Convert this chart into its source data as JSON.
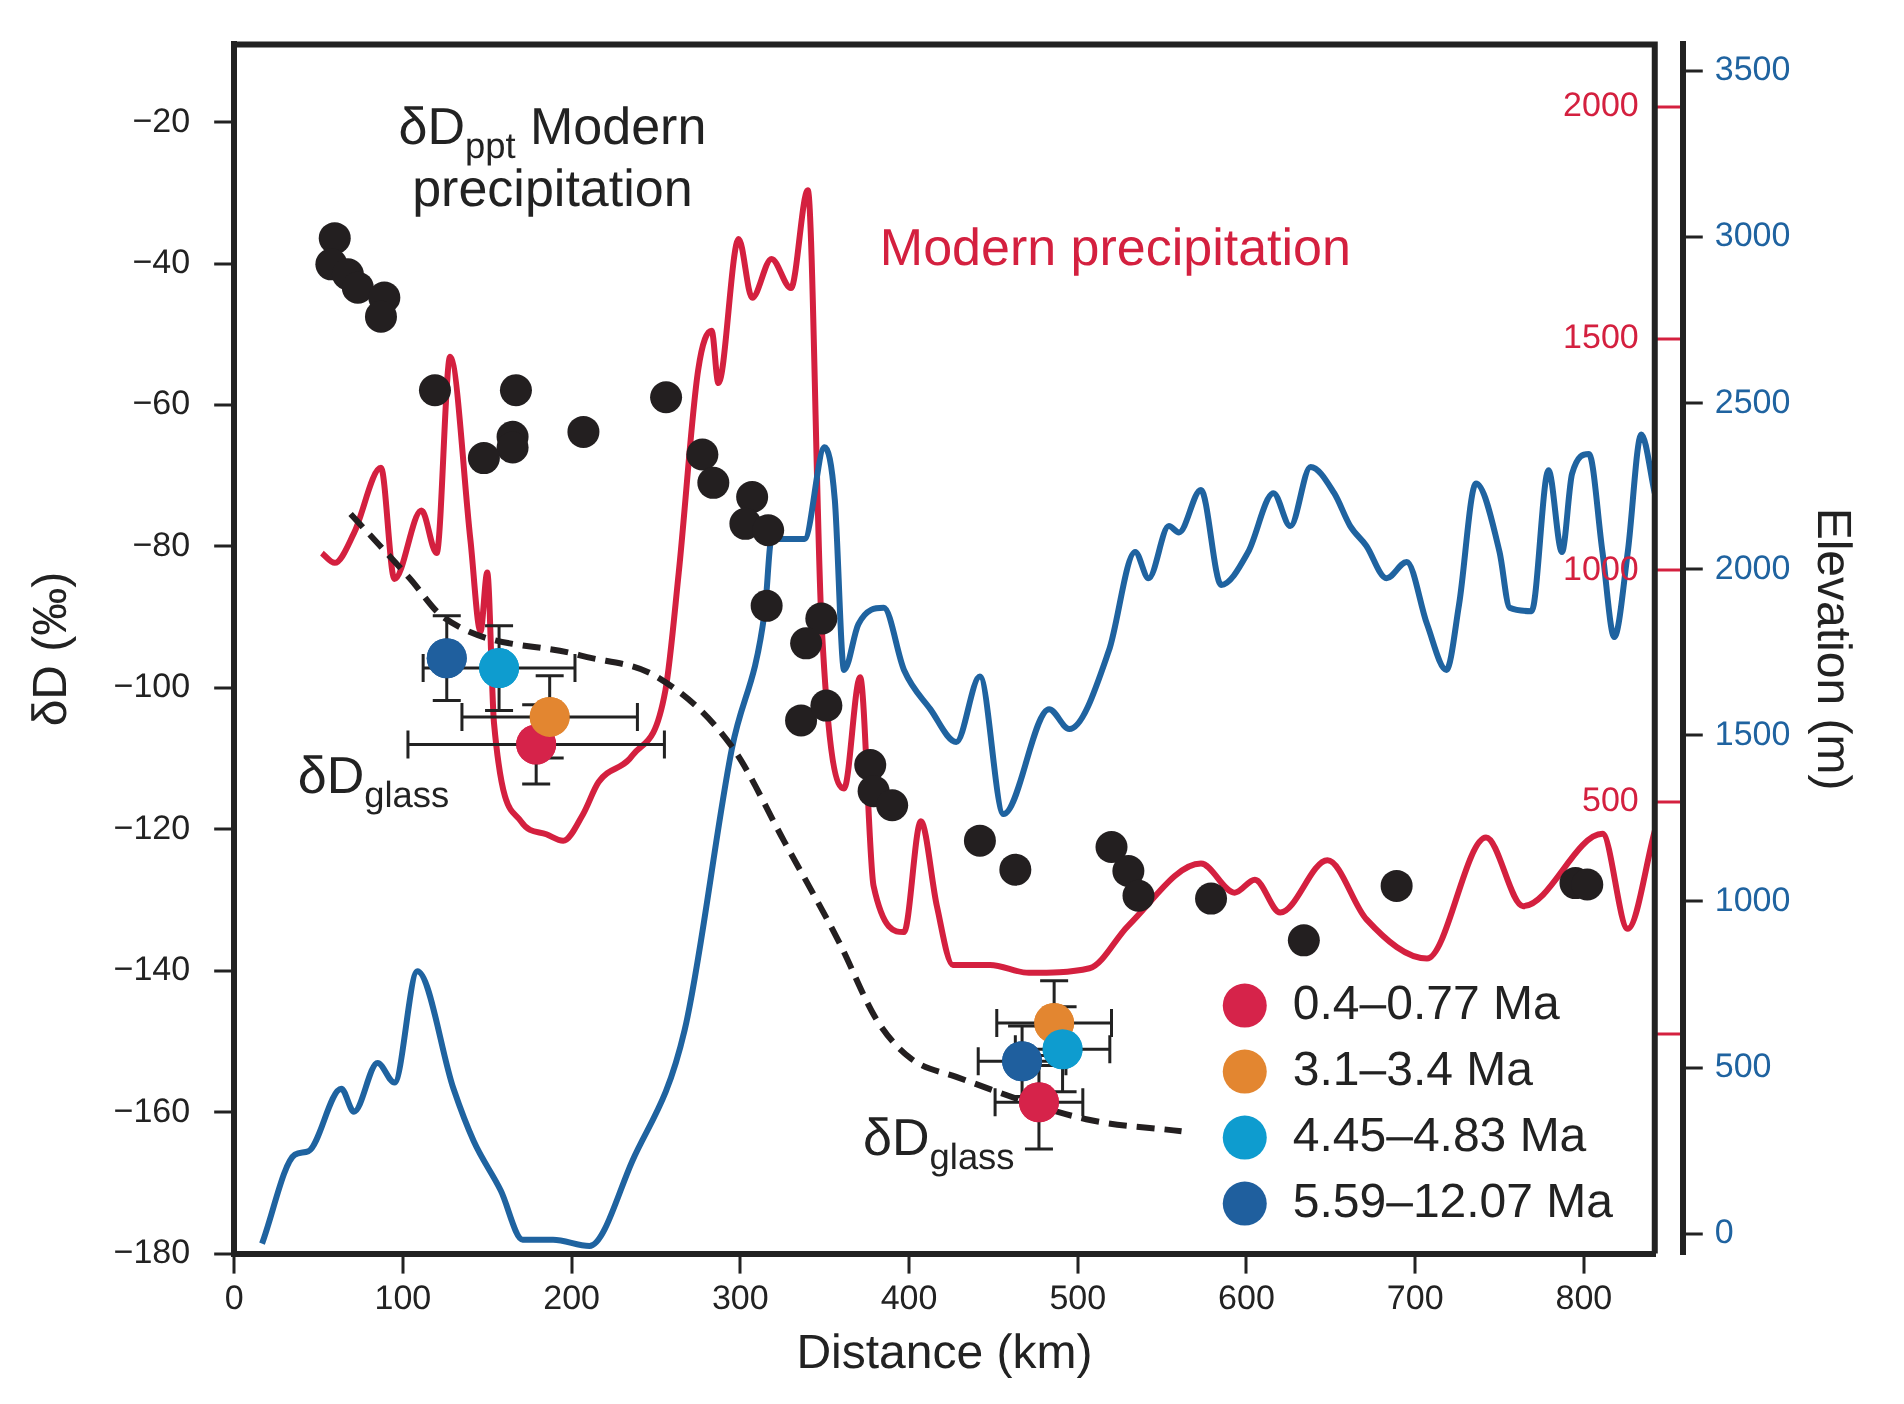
{
  "chart_data": {
    "type": "line",
    "xlabel": "Distance (km)",
    "ylabel": "δD (‰)",
    "y3label": "Elevation (m)",
    "xlim": [
      0,
      842
    ],
    "xticks": [
      0,
      100,
      200,
      300,
      400,
      500,
      600,
      700,
      800
    ],
    "ylim": [
      -180,
      -9
    ],
    "yticks": [
      -180,
      -160,
      -140,
      -120,
      -100,
      -80,
      -60,
      -40,
      -20
    ],
    "y2lim": [
      -475,
      2135
    ],
    "y2ticks": [
      {
        "value": 0,
        "label": null
      },
      500,
      1000,
      1500,
      2000
    ],
    "y3lim": [
      -60,
      3580
    ],
    "y3ticks": [
      0,
      500,
      1000,
      1500,
      2000,
      2500,
      3000,
      3500
    ],
    "grid": false,
    "legend": "bottom right",
    "annotations": [
      "δD$_{ppt}$ Modern precipitation",
      "δD$_{glass}$",
      "δD$_{glass}$"
    ],
    "series": [
      {
        "name": "Modern precipitation",
        "axis": "y2",
        "color": "#d4203f",
        "marker": "none",
        "x": [
          52,
          59.6,
          71,
          87,
          95,
          111,
          120,
          128,
          140,
          146,
          150,
          154,
          170,
          185,
          195,
          206.7,
          216,
          236,
          255.6,
          263.5,
          275,
          283,
          287,
          299,
          307,
          318.5,
          330,
          340,
          348,
          361.5,
          371,
          379,
          397,
          407,
          416.5,
          426,
          448,
          471,
          507,
          530,
          573,
          593,
          605,
          620,
          648,
          671,
          707,
          742,
          764,
          811,
          826,
          842
        ],
        "values": [
          1037,
          1016,
          1080,
          1221,
          981,
          1129,
          1037,
          1461,
          1066,
          868,
          995,
          670,
          458,
          430,
          416,
          473,
          543,
          600,
          741,
          995,
          1432,
          1517,
          1404,
          1715,
          1588,
          1672,
          1609,
          1820,
          896,
          529,
          769,
          318,
          219,
          458,
          275,
          148,
          148,
          131,
          141,
          233,
          367,
          304,
          332,
          261,
          374,
          247,
          162,
          423,
          275,
          431,
          226,
          437
        ]
      },
      {
        "axis": "y3",
        "color": "#1f63a0",
        "marker": "none",
        "x": [
          16.5,
          36,
          44,
          63.5,
          71,
          85,
          95,
          108.6,
          130,
          142,
          158,
          171,
          189,
          210.6,
          236,
          267,
          295,
          314.5,
          318.5,
          338,
          350,
          356,
          361.5,
          370,
          385,
          397,
          412.6,
          428,
          442,
          456,
          483,
          495,
          518.5,
          534,
          542,
          554,
          560,
          573,
          585,
          601,
          616,
          626,
          638,
          652,
          661.5,
          671,
          683,
          695,
          707,
          718.5,
          726,
          736,
          750,
          756,
          769,
          779,
          787,
          793,
          803,
          811,
          818,
          826,
          834,
          842
        ],
        "values": [
          -30,
          238,
          248,
          436,
          367,
          514,
          455,
          790,
          436,
          278,
          130,
          -18,
          -18,
          -37,
          219,
          613,
          1460,
          1874,
          2091,
          2091,
          2367,
          2209,
          1697,
          1835,
          1884,
          1697,
          1579,
          1480,
          1677,
          1263,
          1579,
          1519,
          1756,
          2052,
          1973,
          2130,
          2111,
          2239,
          1953,
          2052,
          2229,
          2130,
          2308,
          2229,
          2130,
          2071,
          1973,
          2022,
          1835,
          1697,
          1894,
          2258,
          2052,
          1884,
          1874,
          2298,
          2052,
          2288,
          2347,
          2052,
          1796,
          2052,
          2406,
          2229
        ]
      },
      {
        "color": "#231f20",
        "marker": "none",
        "line_style": "dashed",
        "x": [
          69,
          104,
          124,
          205,
          251,
          295,
          326,
          358,
          381,
          401,
          428,
          505,
          561.5
        ],
        "values": [
          -75.4,
          -84.5,
          -90,
          -95.4,
          -98.5,
          -108.3,
          -121.7,
          -135.7,
          -147,
          -152.4,
          -155,
          -161,
          -162.7
        ]
      },
      {
        "type": "scatter",
        "color": "#231f20",
        "marker": "circle",
        "x": [
          59.6,
          57.6,
          67.4,
          73.3,
          89,
          87,
          119,
          167,
          165,
          165,
          148,
          207,
          256,
          277.5,
          284,
          307,
          303,
          316.5,
          315.6,
          348,
          339,
          336,
          351,
          377,
          379,
          390,
          442,
          463,
          520,
          530,
          536,
          579,
          634,
          689,
          795,
          802
        ],
        "values": [
          -36.4,
          -40.1,
          -41.5,
          -43.4,
          -44.8,
          -47.5,
          -57.9,
          -57.9,
          -64.5,
          -66,
          -67.5,
          -63.8,
          -58.9,
          -67,
          -71,
          -73,
          -76.8,
          -77.7,
          -88.4,
          -90.2,
          -93.7,
          -104.6,
          -102.5,
          -110.9,
          -114.6,
          -116.6,
          -121.6,
          -125.7,
          -122.5,
          -125.9,
          -129.4,
          -129.8,
          -135.7,
          -128,
          -127.6,
          -127.8
        ]
      },
      {
        "name": "0.4–0.77 Ma",
        "type": "scatter",
        "color": "#d6234a",
        "marker": "circle",
        "x": [
          179,
          477
        ],
        "values": [
          -108,
          -158.6
        ],
        "errors": [
          5.6,
          6.6
        ],
        "xerrors": [
          76,
          26
        ]
      },
      {
        "name": "3.1–3.4 Ma",
        "type": "scatter",
        "color": "#e38630",
        "marker": "circle",
        "x": [
          187,
          486
        ],
        "values": [
          -104.1,
          -147.4
        ],
        "errors": [
          5.8,
          6
        ],
        "xerrors": [
          52,
          34
        ]
      },
      {
        "name": "4.45–4.83 Ma",
        "type": "scatter",
        "color": "#0e9ccf",
        "marker": "circle",
        "x": [
          157,
          491
        ],
        "values": [
          -97.2,
          -151.1
        ],
        "errors": [
          6,
          6
        ],
        "xerrors": [
          45,
          28
        ]
      },
      {
        "name": "5.59–12.07 Ma",
        "type": "scatter",
        "color": "#1f5f9e",
        "marker": "circle",
        "x": [
          126,
          467
        ],
        "values": [
          -95.8,
          -152.8
        ],
        "errors": [
          6,
          5
        ],
        "xerrors": [
          null,
          26
        ]
      }
    ]
  }
}
